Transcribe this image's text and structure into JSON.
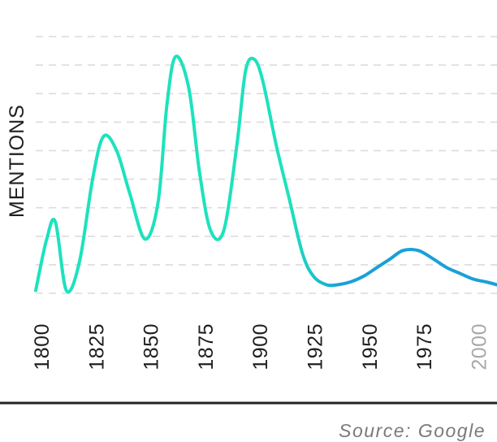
{
  "chart_data": {
    "type": "line",
    "title": "",
    "xlabel": "",
    "ylabel": "MENTIONS",
    "source": "Source: Google",
    "x_ticks": [
      "1800",
      "1825",
      "1850",
      "1875",
      "1900",
      "1925",
      "1950",
      "1975",
      "2000"
    ],
    "muted_ticks": [
      "2000"
    ],
    "xlim": [
      1800,
      2011
    ],
    "ylim": [
      0,
      9
    ],
    "y_tick_labels_shown": false,
    "grid": true,
    "grid_lines": 9,
    "legend": "none",
    "gradient_colors": [
      "#1de2bd",
      "#1aa0d8"
    ],
    "series": [
      {
        "x": [
          1800,
          1805,
          1809,
          1814,
          1820,
          1826,
          1831,
          1837,
          1843,
          1850,
          1856,
          1860,
          1864,
          1870,
          1875,
          1880,
          1886,
          1892,
          1896,
          1900,
          1904,
          1910,
          1916,
          1922,
          1927,
          1933,
          1938,
          1944,
          1950,
          1956,
          1962,
          1968,
          1975,
          1982,
          1988,
          1994,
          2000,
          2006,
          2011
        ],
        "values": [
          0.1,
          1.9,
          2.5,
          0.1,
          1.1,
          4.0,
          5.5,
          5.0,
          3.5,
          1.9,
          3.2,
          6.6,
          8.3,
          7.2,
          4.2,
          2.2,
          2.2,
          5.2,
          7.8,
          8.2,
          7.4,
          5.2,
          3.3,
          1.4,
          0.6,
          0.3,
          0.3,
          0.4,
          0.6,
          0.9,
          1.2,
          1.5,
          1.5,
          1.2,
          0.9,
          0.7,
          0.5,
          0.4,
          0.3
        ]
      }
    ]
  }
}
